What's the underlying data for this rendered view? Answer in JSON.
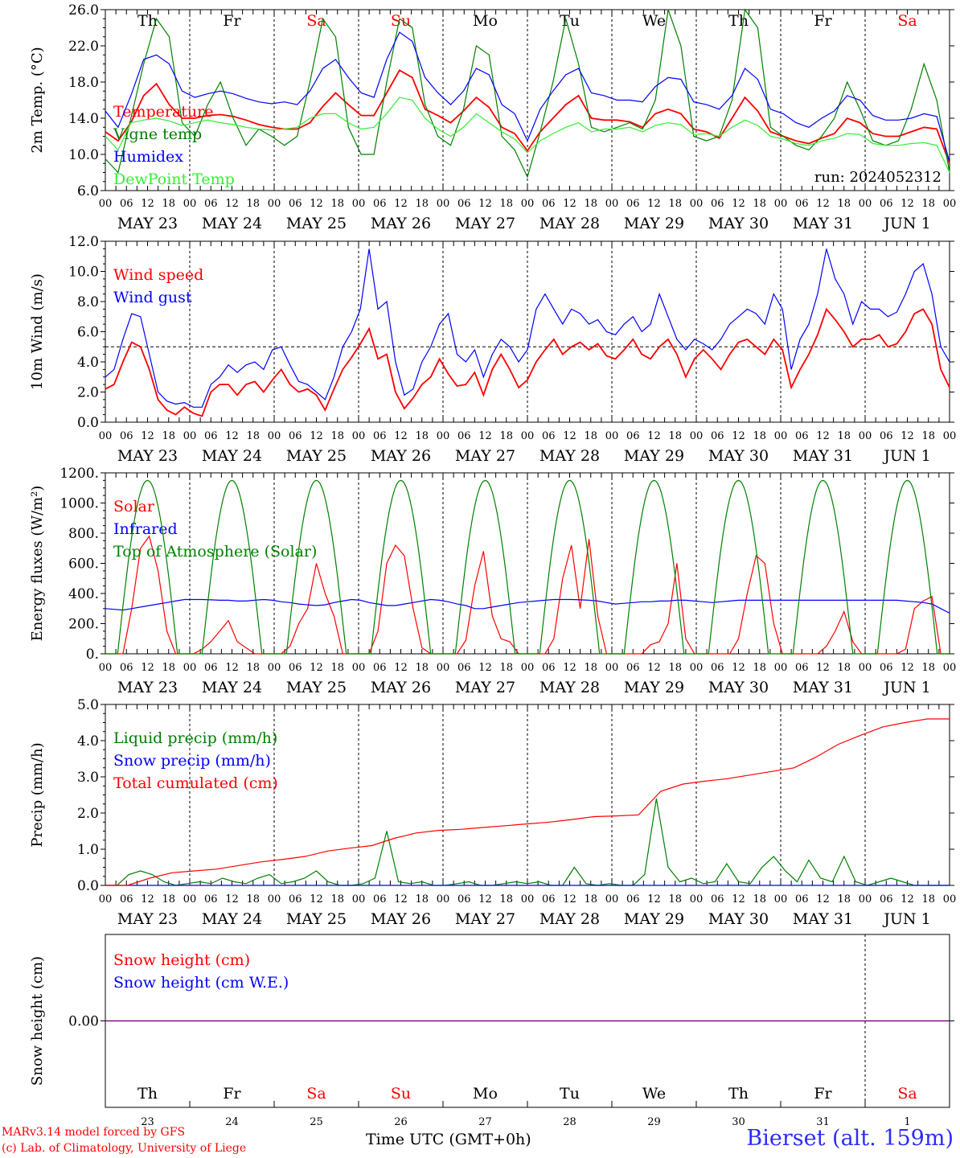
{
  "footer": {
    "model_credit": "MARv3.14 model forced by GFS",
    "lab_credit": "(c) Lab. of Climatology, University of Liege",
    "x_axis_title": "Time UTC (GMT+0h)",
    "station": "Bierset (alt. 159m)"
  },
  "colors": {
    "red": "#ff0000",
    "green": "#008000",
    "blue": "#0000ff",
    "light_green": "#33ee33",
    "purple": "#800080"
  },
  "chart_data": [
    {
      "id": "temperature",
      "type": "line",
      "ylabel": "2m Temp. (°C)",
      "ylim": [
        6,
        26
      ],
      "yticks": [
        "6.0",
        "10.0",
        "14.0",
        "18.0",
        "22.0",
        "26.0"
      ],
      "ytick_values": [
        6,
        10,
        14,
        18,
        22,
        26
      ],
      "day_names": [
        "Th",
        "Fr",
        "Sa",
        "Su",
        "Mo",
        "Tu",
        "We",
        "Th",
        "Fr",
        "Sa"
      ],
      "weekend_days": [
        2,
        3,
        9
      ],
      "run_label": "run: 2024052312",
      "reference_line": null,
      "x_hours_step": 6,
      "series": [
        {
          "name": "Temperature",
          "color": "#ff0000",
          "values": [
            12.5,
            11.5,
            13.5,
            16.5,
            17.8,
            15.5,
            14,
            14,
            14.3,
            14.4,
            14.2,
            13.8,
            13.3,
            13,
            12.8,
            12.8,
            13.5,
            15.3,
            16.8,
            15.5,
            14.3,
            14.3,
            16.8,
            19.3,
            18.5,
            15,
            14.3,
            13.5,
            14.8,
            16.3,
            15.2,
            13,
            12.3,
            10.4,
            12.5,
            14,
            15.5,
            16.5,
            14,
            13.8,
            13.8,
            13.6,
            13,
            14.5,
            15,
            14.5,
            12.8,
            12.5,
            11.8,
            14,
            16.3,
            14.8,
            12.5,
            12,
            11.5,
            11.2,
            11.8,
            12.3,
            14,
            13.5,
            12.3,
            12,
            12,
            12.5,
            13,
            12.8,
            9
          ]
        },
        {
          "name": "Vigne temp",
          "color": "#008000",
          "values": [
            9.5,
            8,
            14,
            20,
            25,
            23,
            13.5,
            12,
            15.5,
            18,
            14,
            11,
            12.8,
            12,
            11,
            12,
            18,
            25,
            23,
            13,
            10,
            10,
            18,
            25,
            24,
            15.5,
            12,
            11,
            15,
            22,
            21,
            12,
            10.5,
            7.5,
            12.5,
            18,
            25,
            20,
            13,
            12.5,
            13,
            13.5,
            12.8,
            16,
            26,
            22,
            12,
            11.5,
            12,
            16,
            26,
            24,
            13,
            12,
            11,
            10.5,
            12,
            14,
            18,
            15,
            11.5,
            11,
            11.5,
            15,
            20,
            16,
            8
          ]
        },
        {
          "name": "Humidex",
          "color": "#0000ff",
          "values": [
            14.8,
            13,
            16.5,
            20.5,
            21,
            20,
            17,
            16.3,
            16.7,
            17,
            16.7,
            16.2,
            15.8,
            15.6,
            15.8,
            15.5,
            17,
            19.5,
            20.5,
            18.5,
            16.8,
            16.3,
            20.5,
            23.5,
            22.5,
            18.5,
            16.8,
            15.5,
            17,
            19.5,
            18.8,
            15.5,
            14.5,
            11.5,
            15,
            17,
            18.8,
            19.5,
            16.8,
            16.5,
            16,
            16,
            15.8,
            17.5,
            18.5,
            18.3,
            15.8,
            15.5,
            15,
            16.5,
            19.5,
            18.3,
            15,
            14.5,
            13.5,
            13,
            14,
            14.8,
            16.5,
            16,
            14.3,
            13.8,
            13.8,
            14,
            14.5,
            14.2,
            9.2
          ]
        },
        {
          "name": "DewPoint Temp",
          "color": "#33ee33",
          "values": [
            12,
            10.5,
            13.5,
            13.8,
            14,
            13.7,
            13.2,
            13.5,
            13.8,
            13.5,
            13.3,
            13,
            12.8,
            12.7,
            12.8,
            13,
            14,
            14.5,
            14.5,
            13.5,
            12.8,
            13,
            14.5,
            16.3,
            16,
            14,
            12.8,
            12,
            13,
            14.5,
            13.5,
            12.5,
            11.7,
            10.2,
            11.5,
            12.3,
            13,
            13.5,
            12.5,
            12.8,
            12.8,
            13,
            12.5,
            13.2,
            13.5,
            13.3,
            12.2,
            12.3,
            12,
            13,
            13.8,
            13.2,
            12,
            11.7,
            11.2,
            11,
            11.5,
            11.8,
            12.3,
            12.2,
            11.2,
            11,
            11,
            11.2,
            11.3,
            11,
            8
          ]
        }
      ]
    },
    {
      "id": "wind",
      "type": "line",
      "ylabel": "10m Wind (m/s)",
      "ylim": [
        0,
        12
      ],
      "yticks": [
        "0.0",
        "2.0",
        "4.0",
        "6.0",
        "8.0",
        "10.0",
        "12.0"
      ],
      "ytick_values": [
        0,
        2,
        4,
        6,
        8,
        10,
        12
      ],
      "reference_line": 5,
      "x_hours_step": 6,
      "series": [
        {
          "name": "Wind speed",
          "color": "#ff0000",
          "values": [
            2.2,
            2.5,
            4,
            5.3,
            5,
            3.5,
            1.5,
            0.8,
            0.5,
            1,
            0.6,
            0.4,
            2,
            2.5,
            2.5,
            1.8,
            2.5,
            2.7,
            2,
            2.8,
            3.5,
            2.5,
            2,
            2.2,
            1.8,
            0.8,
            2.2,
            3.5,
            4.3,
            5.2,
            6.2,
            4.2,
            4.5,
            2,
            0.9,
            1.6,
            2.5,
            3,
            4.2,
            3.2,
            2.4,
            2.5,
            3.3,
            1.8,
            3.5,
            4.5,
            3.5,
            2.3,
            2.8,
            4,
            4.8,
            5.5,
            4.5,
            5,
            5.3,
            4.8,
            5.2,
            4.4,
            4.2,
            4.8,
            5.5,
            4.5,
            4.2,
            5,
            5.5,
            4.5,
            3,
            4.2,
            4.8,
            4.2,
            3.5,
            4.5,
            5.3,
            5.5,
            5,
            4.5,
            5.5,
            4.8,
            2.3,
            3.5,
            4.5,
            5.8,
            7.5,
            6.8,
            6,
            5,
            5.5,
            5.5,
            5.8,
            5,
            5.2,
            6,
            7.2,
            7.5,
            6.5,
            3.5,
            2.3
          ]
        },
        {
          "name": "Wind gust",
          "color": "#0000ff",
          "values": [
            3,
            3.5,
            5.5,
            7.2,
            7,
            4.5,
            2,
            1.4,
            1.2,
            1.3,
            1,
            1,
            2.5,
            3,
            3.8,
            3.3,
            3.8,
            4,
            3.5,
            4.8,
            5,
            3.8,
            2.7,
            2.5,
            2,
            1.5,
            3,
            5,
            6,
            7.5,
            11.5,
            7.5,
            8,
            4,
            1.8,
            2.2,
            4,
            5,
            6.5,
            7.2,
            4.5,
            4,
            4.8,
            3,
            4.5,
            5.5,
            5,
            4,
            4.8,
            7.5,
            8.5,
            7.5,
            6.5,
            7.5,
            7.2,
            6.5,
            6.8,
            6,
            5.8,
            6.5,
            7,
            6,
            6.5,
            8.5,
            7,
            5.5,
            4.8,
            5.5,
            5.2,
            4.8,
            5.5,
            6.5,
            7,
            7.5,
            7.2,
            6.5,
            8.5,
            7.5,
            3.5,
            5.5,
            6.5,
            8.5,
            11.5,
            9.5,
            8.5,
            6.5,
            8,
            7.5,
            7.5,
            7,
            7.3,
            8.5,
            10,
            10.5,
            8.5,
            5,
            4
          ]
        }
      ]
    },
    {
      "id": "energy",
      "type": "line",
      "ylabel": "Energy fluxes (W/m²)",
      "ylim": [
        0,
        1200
      ],
      "yticks": [
        "0.",
        "200.",
        "400.",
        "600.",
        "800.",
        "1000.",
        "1200."
      ],
      "ytick_values": [
        0,
        200,
        400,
        600,
        800,
        1000,
        1200
      ],
      "reference_line": null,
      "x_hours_step": 3,
      "series": [
        {
          "name": "Solar",
          "color": "#ff0000",
          "values": [
            0,
            0,
            0,
            300,
            700,
            780,
            550,
            150,
            0,
            0,
            0,
            30,
            80,
            150,
            220,
            80,
            40,
            0,
            0,
            0,
            0,
            50,
            200,
            300,
            600,
            400,
            250,
            0,
            0,
            0,
            0,
            150,
            600,
            720,
            650,
            300,
            40,
            0,
            0,
            0,
            0,
            90,
            450,
            680,
            250,
            100,
            80,
            0,
            0,
            0,
            0,
            100,
            500,
            720,
            300,
            760,
            250,
            0,
            0,
            0,
            0,
            0,
            60,
            80,
            200,
            600,
            100,
            0,
            0,
            0,
            0,
            0,
            100,
            400,
            650,
            600,
            200,
            0,
            0,
            0,
            0,
            0,
            50,
            150,
            280,
            80,
            0,
            0,
            0,
            0,
            0,
            30,
            300,
            350,
            380,
            0,
            0
          ]
        },
        {
          "name": "Infrared",
          "color": "#0000ff",
          "values": [
            300,
            295,
            290,
            300,
            310,
            320,
            330,
            340,
            350,
            360,
            360,
            360,
            358,
            355,
            355,
            350,
            350,
            355,
            360,
            355,
            345,
            340,
            330,
            325,
            320,
            325,
            340,
            350,
            360,
            355,
            340,
            330,
            320,
            320,
            330,
            340,
            350,
            360,
            355,
            345,
            330,
            320,
            300,
            300,
            310,
            320,
            330,
            340,
            345,
            350,
            355,
            360,
            360,
            360,
            358,
            355,
            350,
            340,
            330,
            335,
            340,
            345,
            345,
            350,
            350,
            355,
            355,
            350,
            345,
            340,
            345,
            350,
            355,
            355,
            355,
            355,
            355,
            355,
            355,
            355,
            355,
            355,
            355,
            355,
            355,
            355,
            355,
            355,
            355,
            355,
            355,
            350,
            345,
            340,
            330,
            300,
            270
          ]
        },
        {
          "name": "Top of Atmosphere (Solar)",
          "color": "#008000",
          "peak": 1150
        }
      ]
    },
    {
      "id": "precip",
      "type": "line",
      "ylabel": "Precip (mm/h)",
      "ylim": [
        0,
        5
      ],
      "yticks": [
        "0.0",
        "1.0",
        "2.0",
        "3.0",
        "4.0",
        "5.0"
      ],
      "ytick_values": [
        0,
        1,
        2,
        3,
        4,
        5
      ],
      "reference_line": null,
      "x_hours_step": 6,
      "series": [
        {
          "name": "Liquid precip (mm/h)",
          "color": "#008000",
          "values": [
            0,
            0,
            0.3,
            0.4,
            0.3,
            0.1,
            0,
            0.05,
            0.1,
            0.05,
            0.2,
            0.1,
            0.05,
            0.2,
            0.3,
            0.05,
            0.1,
            0.2,
            0.4,
            0.1,
            0,
            0,
            0.05,
            0.2,
            1.5,
            0.1,
            0.05,
            0.1,
            0,
            0,
            0.05,
            0.1,
            0,
            0,
            0.05,
            0.1,
            0.05,
            0.1,
            0,
            0,
            0.5,
            0.05,
            0,
            0.05,
            0,
            0,
            0.3,
            2.4,
            0.5,
            0.1,
            0.2,
            0.05,
            0.1,
            0.6,
            0.1,
            0.05,
            0.5,
            0.8,
            0.4,
            0.1,
            0.7,
            0.2,
            0.1,
            0.8,
            0.1,
            0,
            0.1,
            0.2,
            0.1,
            0,
            0,
            0,
            0
          ]
        },
        {
          "name": "Snow precip (mm/h)",
          "color": "#0000ff",
          "values": [
            0,
            0
          ]
        },
        {
          "name": "Total cumulated (cm)",
          "color": "#ff0000",
          "values": [
            0,
            0,
            0.2,
            0.35,
            0.4,
            0.45,
            0.55,
            0.65,
            0.72,
            0.8,
            0.95,
            1.03,
            1.1,
            1.3,
            1.45,
            1.52,
            1.55,
            1.6,
            1.65,
            1.7,
            1.75,
            1.82,
            1.9,
            1.92,
            1.95,
            2.6,
            2.8,
            2.88,
            2.95,
            3.05,
            3.15,
            3.25,
            3.55,
            3.9,
            4.15,
            4.38,
            4.5,
            4.6,
            4.6
          ]
        }
      ]
    },
    {
      "id": "snow",
      "type": "line",
      "ylabel": "Snow height (cm)",
      "ylim": [
        -1,
        1
      ],
      "yticks": [
        "0.00"
      ],
      "ytick_values": [
        0
      ],
      "reference_line": null,
      "day_names": [
        "Th",
        "Fr",
        "Sa",
        "Su",
        "Mo",
        "Tu",
        "We",
        "Th",
        "Fr",
        "Sa"
      ],
      "weekend_days": [
        2,
        3,
        9
      ],
      "day_numbers": [
        "23",
        "24",
        "25",
        "26",
        "27",
        "28",
        "29",
        "30",
        "31",
        "1"
      ],
      "series": [
        {
          "name": "Snow height (cm)",
          "color": "#ff0000",
          "values": [
            0,
            0
          ]
        },
        {
          "name": "Snow height (cm W.E.)",
          "color": "#0000ff",
          "values": [
            0,
            0
          ]
        }
      ]
    }
  ],
  "x_axis": {
    "hour_labels": [
      "00",
      "06",
      "12",
      "18"
    ],
    "final_hour_label": "00",
    "date_labels": [
      "MAY 23",
      "MAY 24",
      "MAY 25",
      "MAY 26",
      "MAY 27",
      "MAY 28",
      "MAY 29",
      "MAY 30",
      "MAY 31",
      "JUN  1"
    ],
    "days": 10
  }
}
